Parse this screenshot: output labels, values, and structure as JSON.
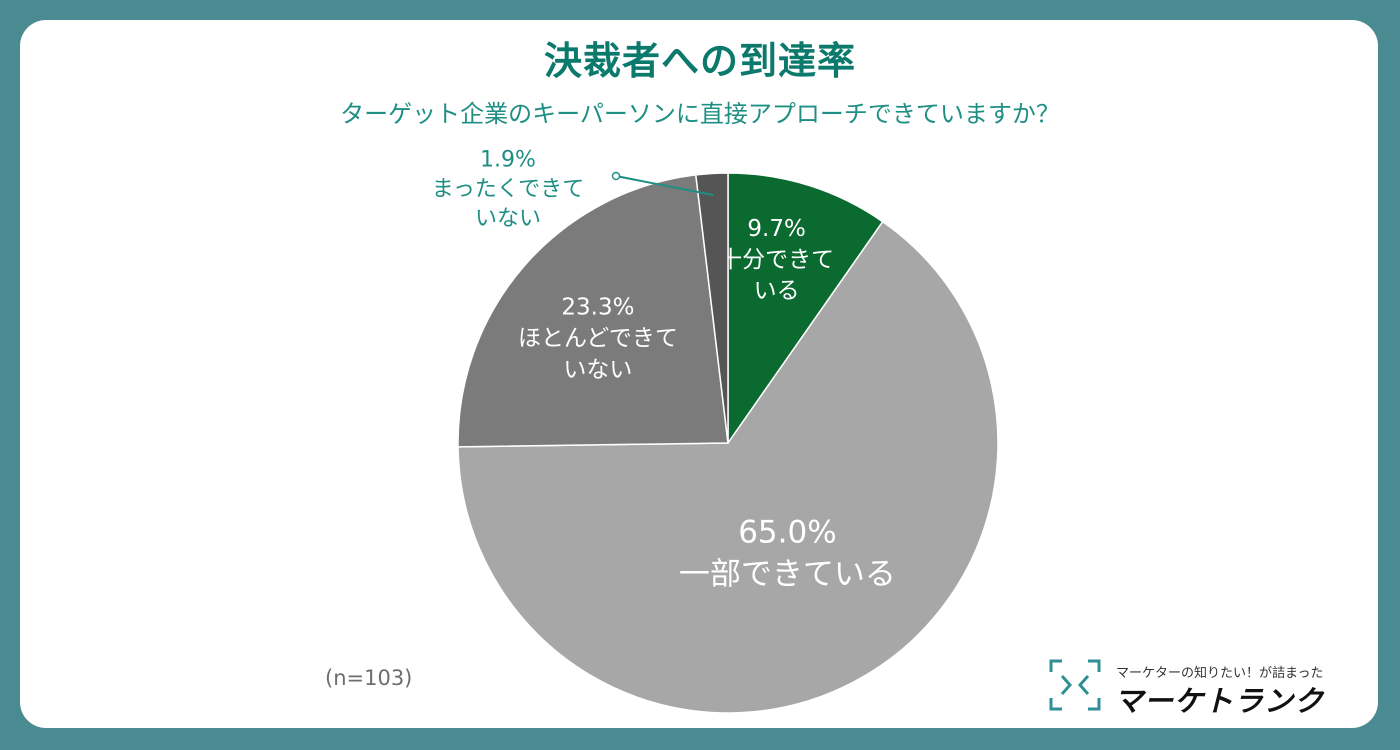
{
  "header": {
    "title": "決裁者への到達率",
    "subtitle": "ターゲット企業のキーパーソンに直接アプローチできていますか？"
  },
  "chart_data": {
    "type": "pie",
    "title": "決裁者への到達率",
    "subtitle": "ターゲット企業のキーパーソンに直接アプローチできていますか？",
    "start_angle": "12 o'clock, clockwise",
    "slices": [
      {
        "label_lines": [
          "十分できて",
          "いる"
        ],
        "value": 9.7,
        "value_label": "9.7%",
        "color": "#0a6a2f"
      },
      {
        "label_lines": [
          "一部できている"
        ],
        "value": 65.0,
        "value_label": "65.0%",
        "color": "#a7a7a7"
      },
      {
        "label_lines": [
          "ほとんどできて",
          "いない"
        ],
        "value": 23.3,
        "value_label": "23.3%",
        "color": "#7b7b7b"
      },
      {
        "label_lines": [
          "まったくできて",
          "いない"
        ],
        "value": 1.9,
        "value_label": "1.9%",
        "color": "#555555"
      }
    ],
    "note": "(n=103)"
  },
  "footer": {
    "sample_note": "(n=103)",
    "logo_tagline": "マーケターの知りたい！が詰まった",
    "logo_name": "マーケトランク",
    "logo_color": "#2f8f95"
  }
}
